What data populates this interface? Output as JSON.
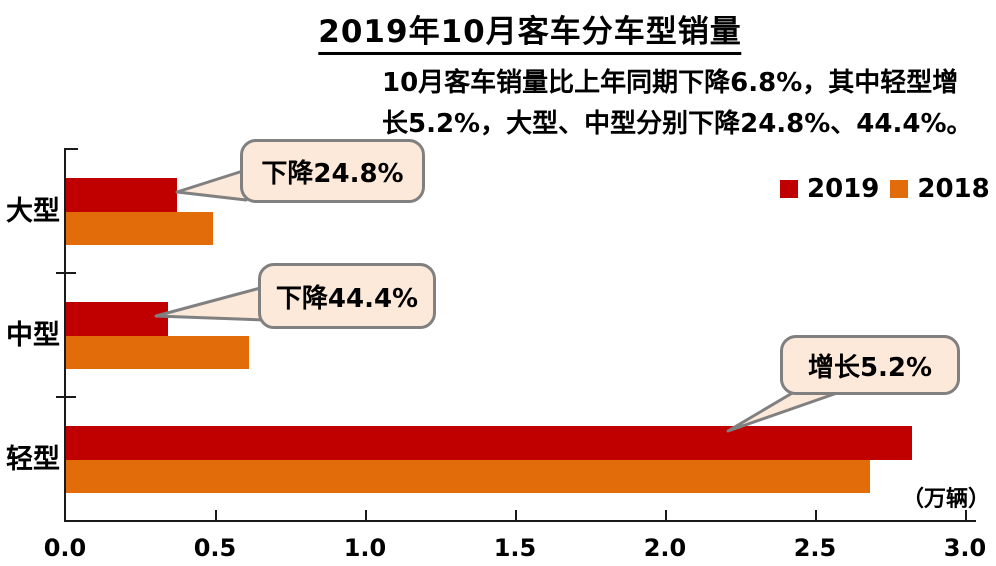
{
  "title": "2019年10月客车分车型销量",
  "subtitle": {
    "line1": "10月客车销量比上年同期下降6.8%，其中轻型增",
    "line2": "长5.2%，大型、中型分别下降24.8%、44.4%。"
  },
  "unit_label": "（万辆）",
  "legend": {
    "items": [
      {
        "label": "2019",
        "color": "#C00000"
      },
      {
        "label": "2018",
        "color": "#E36C0A"
      }
    ]
  },
  "callouts": [
    {
      "label": "下降24.8%",
      "target": "大型 2019 bar"
    },
    {
      "label": "下降44.4%",
      "target": "中型 2019 bar"
    },
    {
      "label": "增长5.2%",
      "target": "轻型 2019 bar"
    }
  ],
  "colors": {
    "series_2019": "#C00000",
    "series_2018": "#E36C0A",
    "callout_fill": "#FDE9D9",
    "callout_border": "#808080",
    "axis": "#1a1a1a",
    "text": "#000000"
  },
  "chart_data": {
    "type": "bar",
    "orientation": "horizontal",
    "title": "2019年10月客车分车型销量",
    "categories": [
      "大型",
      "中型",
      "轻型"
    ],
    "series": [
      {
        "name": "2019",
        "color": "#C00000",
        "values": [
          0.37,
          0.34,
          2.82
        ]
      },
      {
        "name": "2018",
        "color": "#E36C0A",
        "values": [
          0.49,
          0.61,
          2.68
        ]
      }
    ],
    "x_ticks": [
      "0.0",
      "0.5",
      "1.0",
      "1.5",
      "2.0",
      "2.5",
      "3.0"
    ],
    "xlim": [
      0.0,
      3.0
    ],
    "xlabel": "（万辆）",
    "ylabel": "",
    "grid": false,
    "legend_position": "top-right",
    "annotations": [
      {
        "text": "下降24.8%",
        "category": "大型"
      },
      {
        "text": "下降44.4%",
        "category": "中型"
      },
      {
        "text": "增长5.2%",
        "category": "轻型"
      }
    ]
  }
}
